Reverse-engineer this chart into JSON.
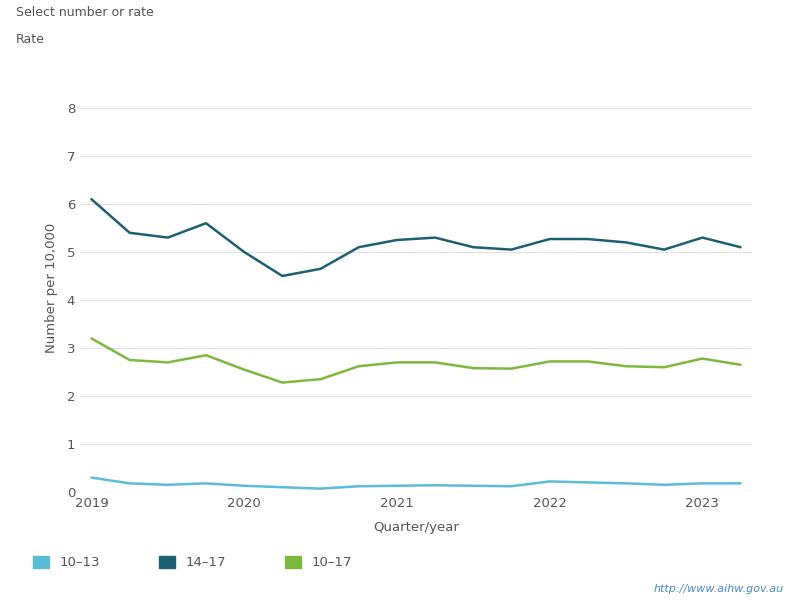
{
  "title_line1": "Select number or rate",
  "title_line2": "Rate",
  "ylabel": "Number per 10,000",
  "xlabel": "Quarter/year",
  "url_text": "http://www.aihw.gov.au",
  "ylim": [
    0,
    8.5
  ],
  "yticks": [
    0,
    1,
    2,
    3,
    4,
    5,
    6,
    7,
    8
  ],
  "x_tick_labels": [
    "2019",
    "2020",
    "2021",
    "2022",
    "2023"
  ],
  "background_color": "#ffffff",
  "series": {
    "10-13": {
      "color": "#5bbcd5",
      "label": "10–13",
      "values": [
        0.3,
        0.18,
        0.15,
        0.18,
        0.13,
        0.1,
        0.07,
        0.12,
        0.13,
        0.14,
        0.13,
        0.12,
        0.22,
        0.2,
        0.18,
        0.15,
        0.18,
        0.18
      ]
    },
    "14-17": {
      "color": "#1d5f73",
      "label": "14–17",
      "values": [
        6.1,
        5.4,
        5.3,
        5.6,
        5.0,
        4.5,
        4.65,
        5.1,
        5.25,
        5.3,
        5.1,
        5.05,
        5.27,
        5.27,
        5.2,
        5.05,
        5.3,
        5.1
      ]
    },
    "10-17": {
      "color": "#7cb83e",
      "label": "10–17",
      "values": [
        3.2,
        2.75,
        2.7,
        2.85,
        2.55,
        2.28,
        2.35,
        2.62,
        2.7,
        2.7,
        2.58,
        2.57,
        2.72,
        2.72,
        2.62,
        2.6,
        2.78,
        2.65
      ]
    }
  },
  "n_points": 18,
  "x_year_positions": [
    0,
    4,
    8,
    12,
    16
  ],
  "legend": [
    {
      "label": "10–13",
      "color": "#5bbcd5"
    },
    {
      "label": "14–17",
      "color": "#1d5f73"
    },
    {
      "label": "10–17",
      "color": "#7cb83e"
    }
  ]
}
